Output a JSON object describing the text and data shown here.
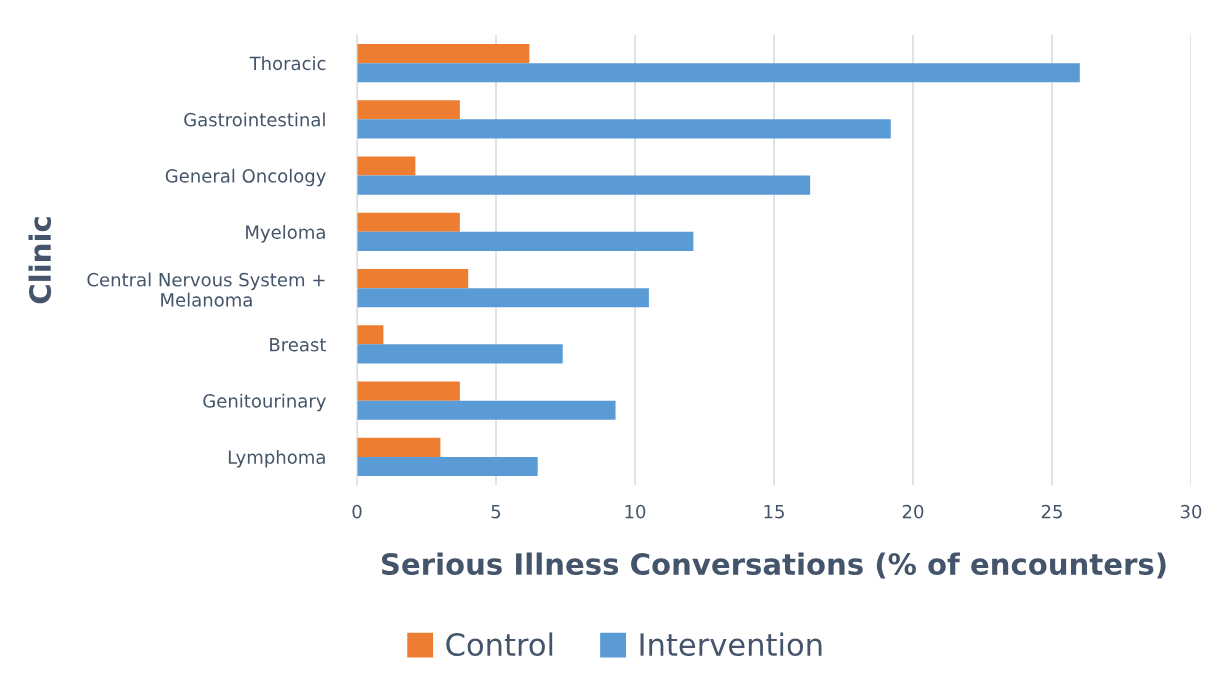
{
  "chart_data": {
    "type": "bar",
    "orientation": "horizontal",
    "xlabel": "Serious Illness Conversations (% of encounters)",
    "ylabel": "Clinic",
    "categories": [
      "Thoracic",
      "Gastrointestinal",
      "General Oncology",
      "Myeloma",
      "Central Nervous System +\nMelanoma",
      "Breast",
      "Genitourinary",
      "Lymphoma"
    ],
    "series": [
      {
        "name": "Control",
        "color": "#ed7d31",
        "values": [
          6.2,
          3.7,
          2.1,
          3.7,
          4.0,
          0.95,
          3.7,
          3.0
        ]
      },
      {
        "name": "Intervention",
        "color": "#5b9bd5",
        "values": [
          26.0,
          19.2,
          16.3,
          12.1,
          10.5,
          7.4,
          9.3,
          6.5
        ]
      }
    ],
    "xlim": [
      0,
      30
    ],
    "xticks": [
      0,
      5,
      10,
      15,
      20,
      25,
      30
    ],
    "grid": "x",
    "legend": "bottom"
  }
}
